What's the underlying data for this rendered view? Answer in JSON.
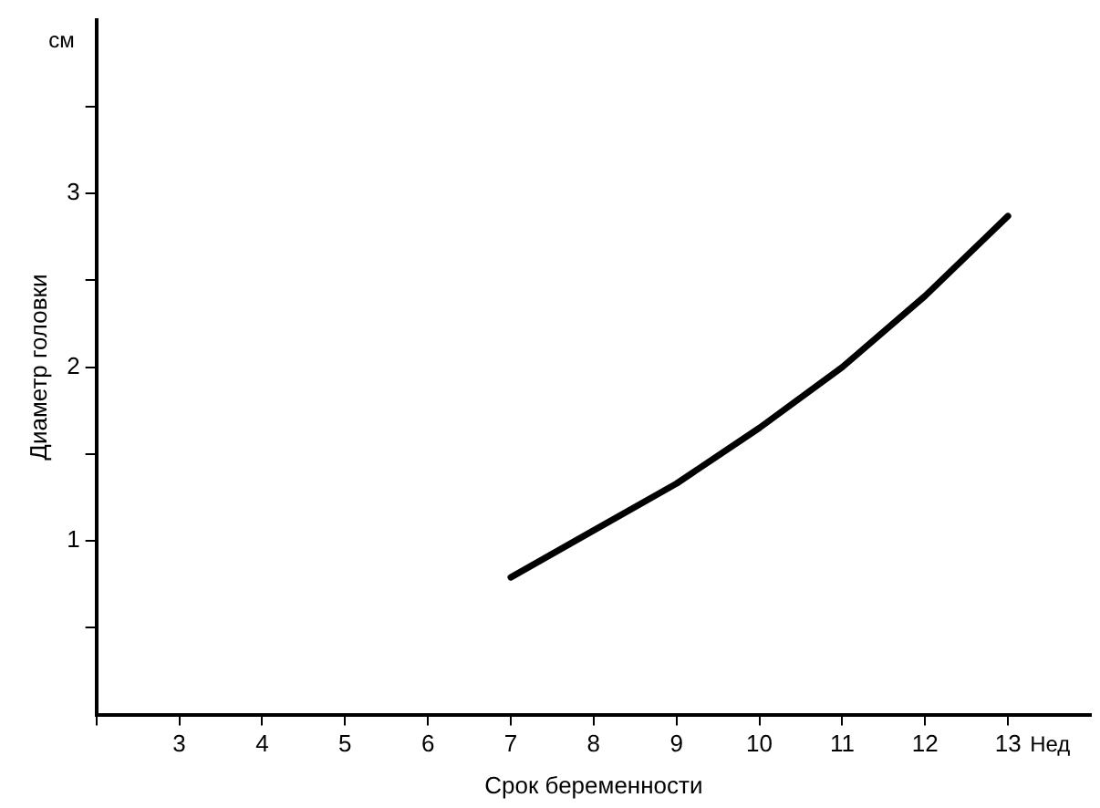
{
  "chart_data": {
    "type": "line",
    "xlabel": "Срок беременности",
    "ylabel": "Диаметр головки",
    "annotations": [
      "см",
      "Нед"
    ],
    "xlim": [
      2,
      14
    ],
    "xticks": [
      {
        "value": 2,
        "label": null
      },
      3,
      4,
      5,
      6,
      7,
      8,
      9,
      10,
      11,
      12,
      13
    ],
    "ylim": [
      0,
      4
    ],
    "yticks": [
      {
        "value": 0.5,
        "label": null
      },
      1,
      {
        "value": 1.5,
        "label": null
      },
      2,
      {
        "value": 2.5,
        "label": null
      },
      3,
      {
        "value": 3.5,
        "label": null
      }
    ],
    "marker": "none",
    "line_style": "solid",
    "series": [
      {
        "color": "#000000",
        "x": [
          7,
          8,
          9,
          10,
          11,
          12,
          13
        ],
        "values": [
          0.79,
          1.06,
          1.33,
          1.65,
          2.0,
          2.41,
          2.87
        ]
      }
    ]
  }
}
